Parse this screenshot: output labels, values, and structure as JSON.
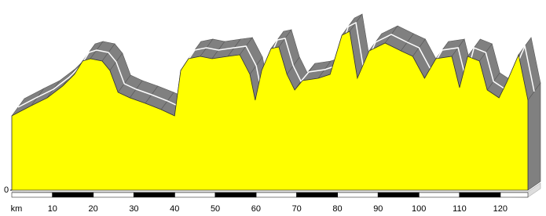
{
  "chart_data": {
    "type": "area",
    "x_label": "km",
    "x": [
      0,
      4.8,
      8.7,
      12.5,
      15.4,
      17.4,
      19.3,
      22.2,
      24.1,
      26.1,
      29.0,
      32.8,
      36.7,
      40.0,
      41.5,
      43.4,
      46.3,
      49.2,
      53.1,
      56.0,
      58.5,
      59.8,
      61.4,
      63.7,
      65.6,
      67.6,
      69.5,
      71.4,
      75.3,
      78.2,
      81.1,
      83.0,
      84.9,
      87.8,
      91.7,
      95.6,
      98.5,
      101.4,
      104.2,
      108.1,
      110.0,
      112.0,
      114.9,
      116.8,
      119.7,
      121.6,
      124.5,
      126.8
    ],
    "values": [
      95,
      108,
      118,
      133,
      148,
      165,
      168,
      165,
      153,
      125,
      118,
      111,
      103,
      95,
      153,
      168,
      171,
      168,
      171,
      173,
      148,
      115,
      153,
      181,
      183,
      148,
      128,
      140,
      143,
      148,
      198,
      203,
      143,
      178,
      188,
      178,
      171,
      143,
      168,
      171,
      131,
      171,
      165,
      128,
      118,
      138,
      173,
      115
    ],
    "color": "#ffff00",
    "side_color": "#808080",
    "xlim": [
      0,
      126.8
    ],
    "xticks": [
      10,
      20,
      30,
      40,
      50,
      60,
      70,
      80,
      90,
      100,
      110,
      120
    ],
    "ylim": [
      0,
      220
    ],
    "yticks": [
      0
    ]
  }
}
